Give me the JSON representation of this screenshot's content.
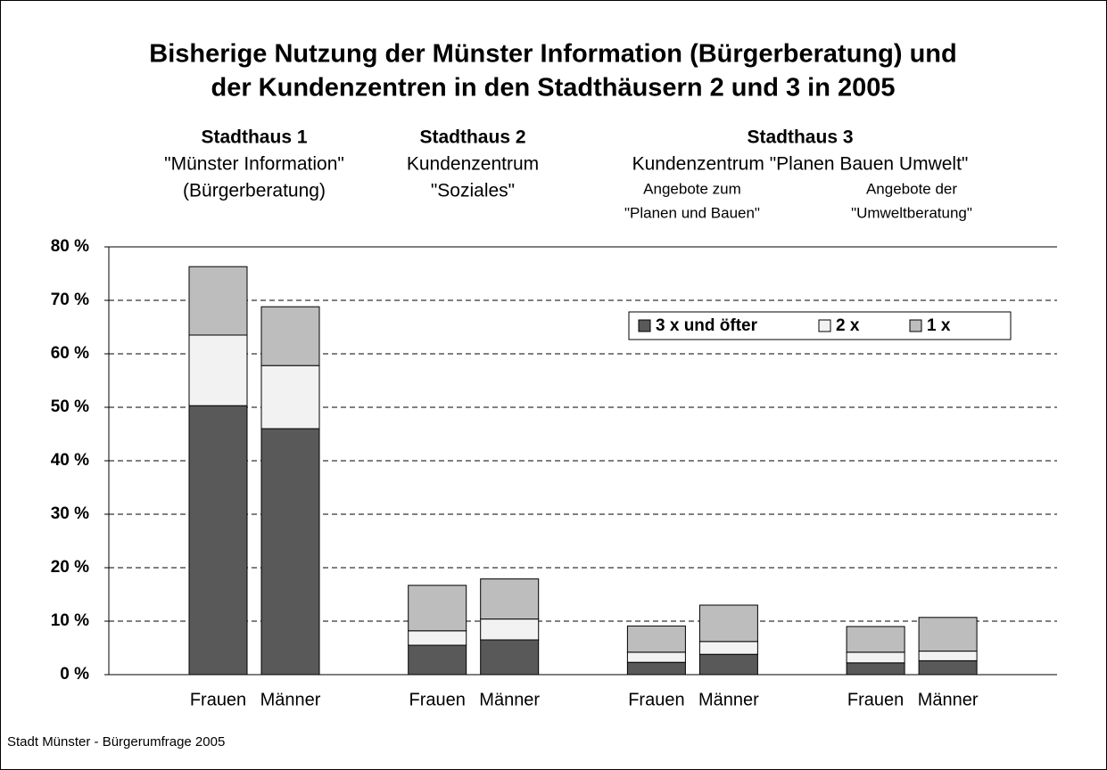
{
  "chart_data": {
    "type": "stacked_bar",
    "title": [
      "Bisherige Nutzung der Münster Information (Bürgerberatung) und",
      "der Kundenzentren in den Stadthäusern 2 und 3 in 2005"
    ],
    "groups": [
      {
        "lines": [
          "Stadthaus 1",
          "\"Münster Information\"",
          "(Bürgerberatung)"
        ]
      },
      {
        "lines": [
          "Stadthaus 2",
          "Kundenzentrum",
          "\"Soziales\""
        ]
      },
      {
        "lines": [
          "Stadthaus 3",
          "Kundenzentrum \"Planen Bauen Umwelt\""
        ],
        "sub": [
          [
            "Angebote zum",
            "\"Planen und Bauen\""
          ],
          [
            "Angebote der",
            "\"Umweltberatung\""
          ]
        ]
      }
    ],
    "categories": [
      "Frauen",
      "Männer",
      "Frauen",
      "Männer",
      "Frauen",
      "Männer",
      "Frauen",
      "Männer"
    ],
    "series": [
      {
        "name": "3 x und öfter",
        "color": "#595959",
        "values": [
          50.3,
          46,
          5.5,
          6.5,
          2.3,
          3.8,
          2.2,
          2.6
        ]
      },
      {
        "name": "2 x",
        "color": "#f2f2f2",
        "values": [
          13.2,
          11.8,
          2.7,
          3.9,
          1.9,
          2.4,
          2.0,
          1.8
        ]
      },
      {
        "name": "1 x",
        "color": "#bdbdbd",
        "values": [
          12.8,
          11.0,
          8.5,
          7.5,
          4.9,
          6.8,
          4.8,
          6.3
        ]
      }
    ],
    "ylim": [
      0,
      80
    ],
    "yticks": [
      {
        "value": 0,
        "label": "0 %"
      },
      {
        "value": 10,
        "label": "10 %"
      },
      {
        "value": 20,
        "label": "20 %"
      },
      {
        "value": 30,
        "label": "30 %"
      },
      {
        "value": 40,
        "label": "40 %"
      },
      {
        "value": 50,
        "label": "50 %"
      },
      {
        "value": 60,
        "label": "60 %"
      },
      {
        "value": 70,
        "label": "70 %"
      },
      {
        "value": 80,
        "label": "80 %"
      }
    ],
    "grid": true,
    "source": "Stadt Münster - Bürgerumfrage 2005"
  }
}
